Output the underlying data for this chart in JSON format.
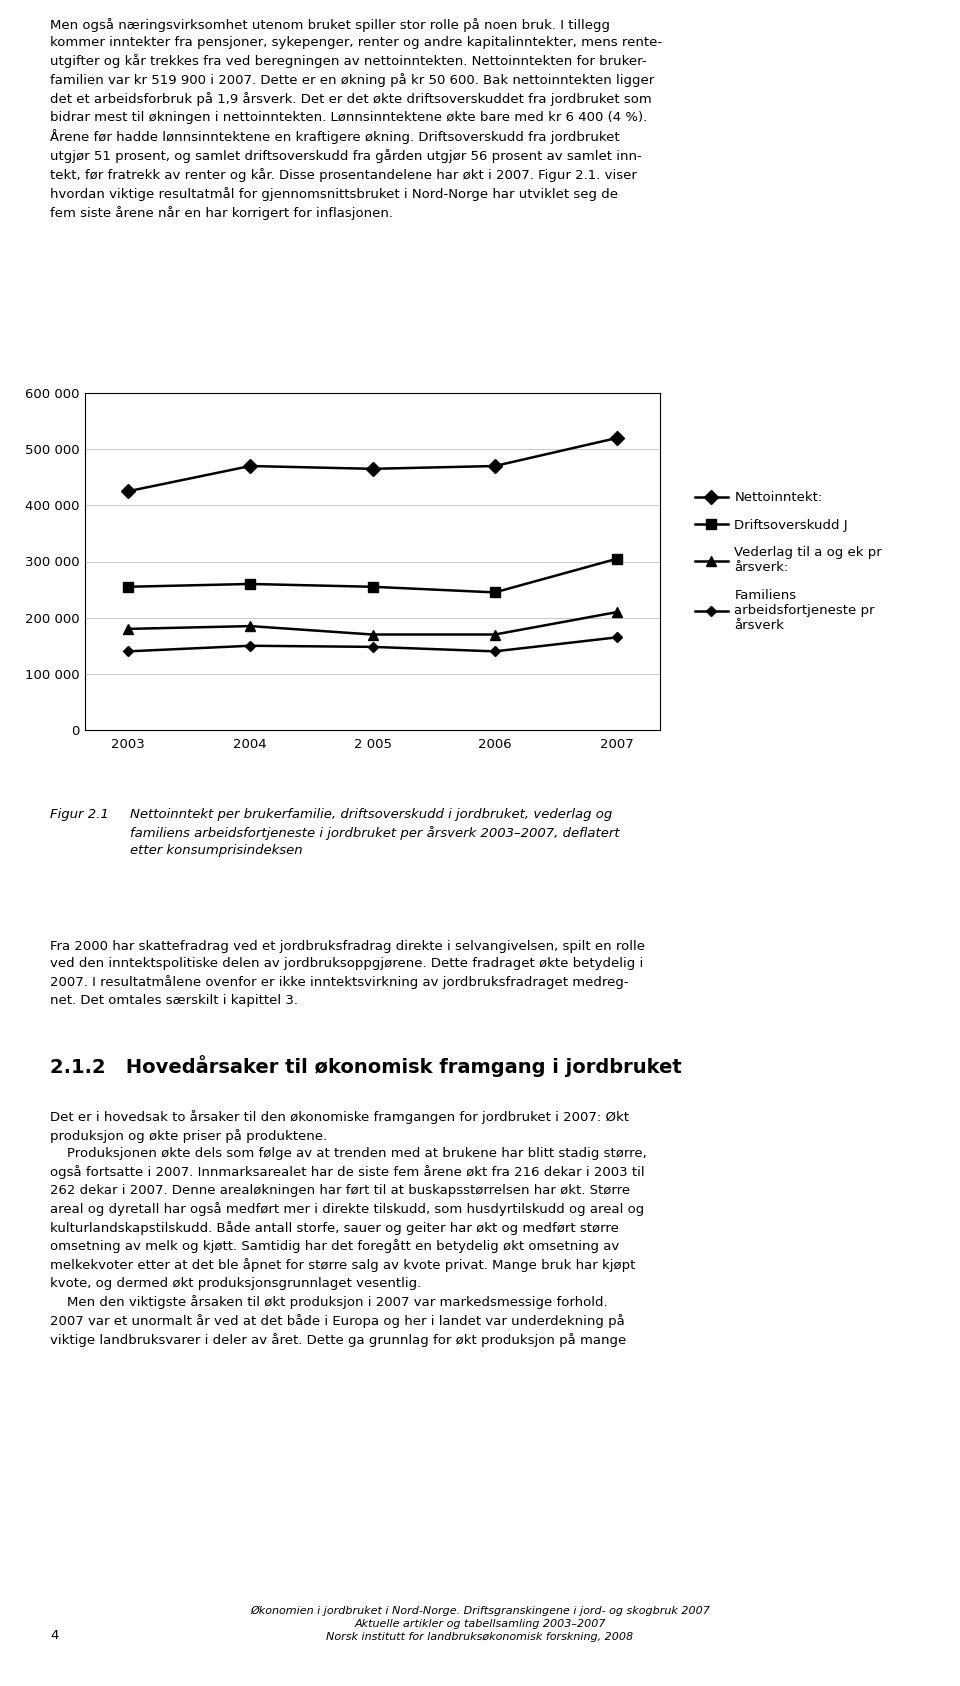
{
  "years": [
    2003,
    2004,
    2005,
    2006,
    2007
  ],
  "year_labels": [
    "2003",
    "2004",
    "2 005",
    "2006",
    "2007"
  ],
  "nettoinntekt": [
    425000,
    470000,
    465000,
    470000,
    520000
  ],
  "driftsoverskudd": [
    255000,
    260000,
    255000,
    245000,
    305000
  ],
  "vederlag": [
    180000,
    185000,
    170000,
    170000,
    210000
  ],
  "familiens": [
    140000,
    150000,
    148000,
    140000,
    165000
  ],
  "ylim": [
    0,
    600000
  ],
  "yticks": [
    0,
    100000,
    200000,
    300000,
    400000,
    500000,
    600000
  ],
  "legend_labels": [
    "Nettoinntekt:",
    "Driftsoverskudd J",
    "Vederlag til a og ek pr\nårsverk:",
    "Familiens\narbeidsfortjeneste pr\nårsverk"
  ],
  "color": "#000000",
  "background_color": "#ffffff",
  "grid_color": "#c8c8c8",
  "para1": "Men også næringsvirksomhet utenom bruket spiller stor rolle på noen bruk. I tillegg\nkommer inntekter fra pensjoner, sykepenger, renter og andre kapitalinntekter, mens rente-\nutgifter og kår trekkes fra ved beregningen av nettoinntekten. Nettoinntekten for bruker-\nfamilien var kr 519 900 i 2007. Dette er en økning på kr 50 600. Bak nettoinntekten ligger\ndet et arbeidsforbruk på 1,9 årsverk. Det er det økte driftsoverskuddet fra jordbruket som\nbidrar mest til økningen i nettoinntekten. Lønnsinntektene økte bare med kr 6 400 (4 %).\nÅrene før hadde lønnsinntektene en kraftigere økning. Driftsoverskudd fra jordbruket\nutgjør 51 prosent, og samlet driftsoverskudd fra gården utgjør 56 prosent av samlet inn-\ntekt, før fratrekk av renter og kår. Disse prosentandelene har økt i 2007. Figur 2.1. viser\nhvordan viktige resultatmål for gjennomsnittsbruket i Nord-Norge har utviklet seg de\nfem siste årene når en har korrigert for inflasjonen.",
  "figcaption_label": "Figur 2.1",
  "figcaption_text": "Nettoinntekt per brukerfamilie, driftsoverskudd i jordbruket, vederlag og\nfamiliens arbeidsfortjeneste i jordbruket per årsverk 2003–2007, deflatert\netter konsumprisindeksen",
  "para2": "Fra 2000 har skattefradrag ved et jordbruksfradrag direkte i selvangivelsen, spilt en rolle\nved den inntektspolitiske delen av jordbruksoppgjørene. Dette fradraget økte betydelig i\n2007. I resultatmålene ovenfor er ikke inntektsvirkning av jordbruksfradraget medreg-\nnet. Det omtales særskilt i kapittel 3.",
  "section_header": "2.1.2   Hovedårsaker til økonomisk framgang i jordbruket",
  "para3": "Det er i hovedsak to årsaker til den økonomiske framgangen for jordbruket i 2007: Økt\nproduksjon og økte priser på produktene.\n    Produksjonen økte dels som følge av at trenden med at brukene har blitt stadig større,\nogså fortsatte i 2007. Innmarksarealet har de siste fem årene økt fra 216 dekar i 2003 til\n262 dekar i 2007. Denne arealøkningen har ført til at buskapsstørrelsen har økt. Større\nareal og dyretall har også medført mer i direkte tilskudd, som husdyrtilskudd og areal og\nkulturlandskapstilskudd. Både antall storfe, sauer og geiter har økt og medført større\nomsetning av melk og kjøtt. Samtidig har det foregått en betydelig økt omsetning av\nmelkekvoter etter at det ble åpnet for større salg av kvote privat. Mange bruk har kjøpt\nkvote, og dermed økt produksjonsgrunnlaget vesentlig.\n    Men den viktigste årsaken til økt produksjon i 2007 var markedsmessige forhold.\n2007 var et unormalt år ved at det både i Europa og her i landet var underdekning på\nviktige landbruksvarer i deler av året. Dette ga grunnlag for økt produksjon på mange",
  "footer_num": "4",
  "footer_text": "Økonomien i jordbruket i Nord-Norge. Driftsgranskingene i jord- og skogbruk 2007\nAktuelle artikler og tabellsamling 2003–2007\nNorsk institutt for landbruksøkonomisk forskning, 2008"
}
